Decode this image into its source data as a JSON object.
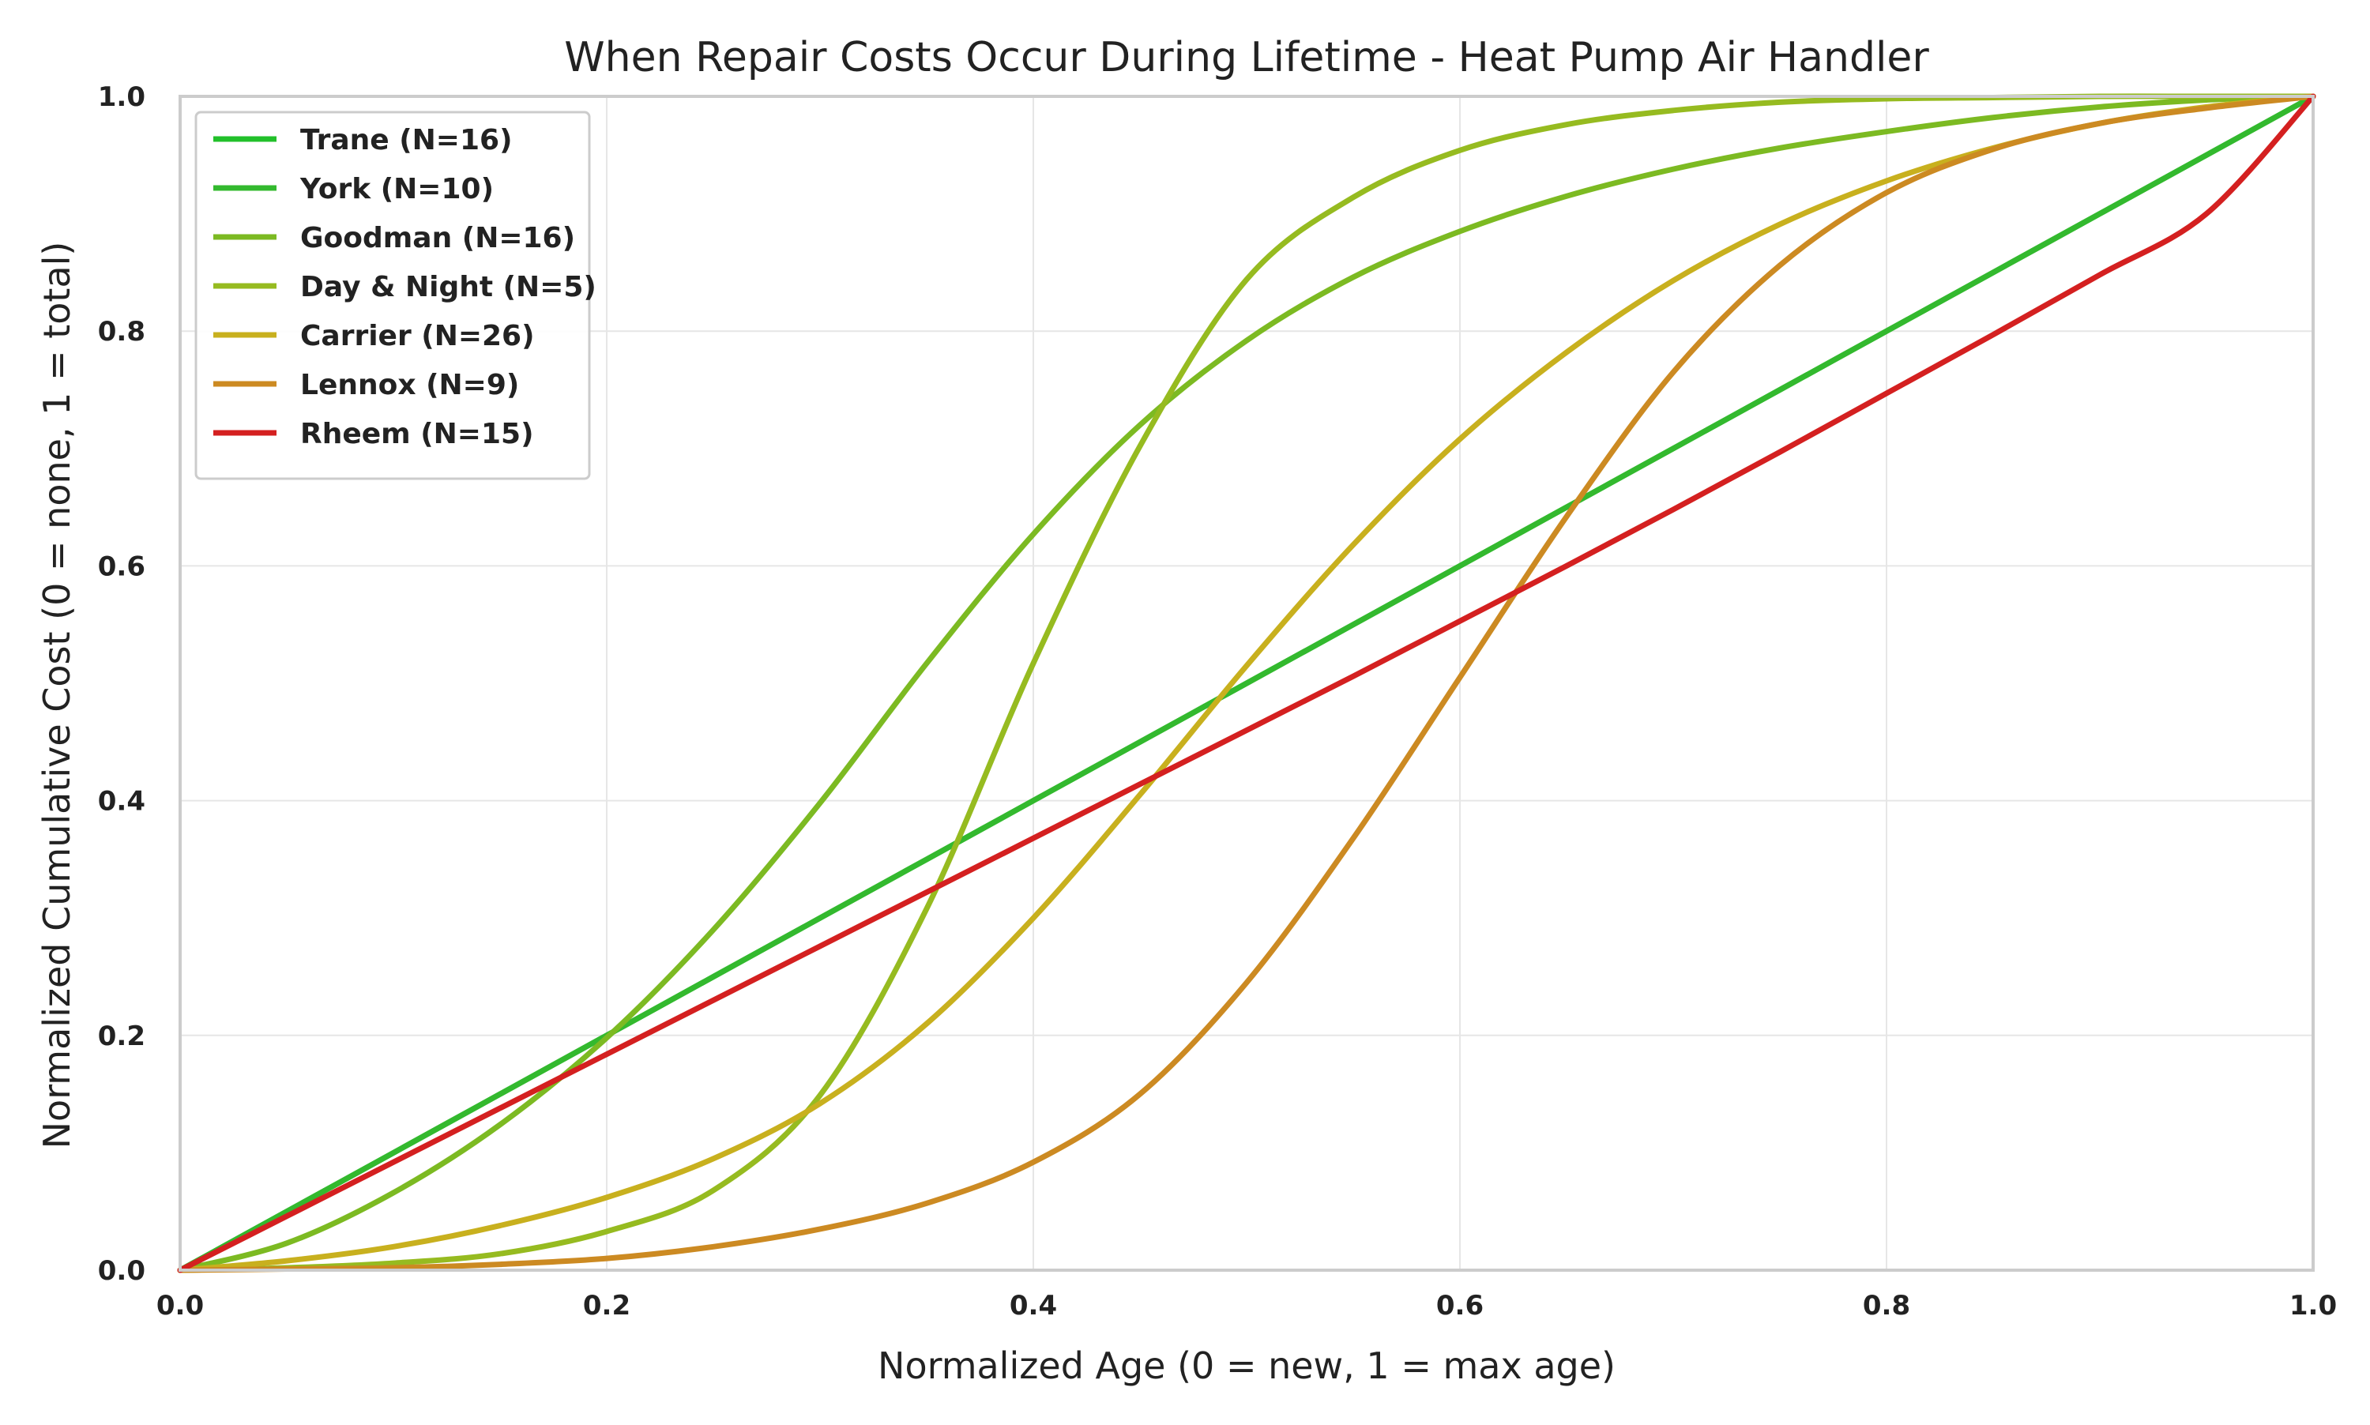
{
  "chart_data": {
    "type": "line",
    "title": "When Repair Costs Occur During Lifetime - Heat Pump Air Handler",
    "xlabel": "Normalized Age (0 = new, 1 = max age)",
    "ylabel": "Normalized Cumulative Cost (0 = none, 1 = total)",
    "xlim": [
      0.0,
      1.0
    ],
    "ylim": [
      0.0,
      1.0
    ],
    "xticks": [
      "0.0",
      "0.2",
      "0.4",
      "0.6",
      "0.8",
      "1.0"
    ],
    "yticks": [
      "0.0",
      "0.2",
      "0.4",
      "0.6",
      "0.8",
      "1.0"
    ],
    "grid": true,
    "legend_position": "top-left",
    "x": [
      0.0,
      0.05,
      0.1,
      0.15,
      0.2,
      0.25,
      0.3,
      0.35,
      0.4,
      0.45,
      0.5,
      0.55,
      0.6,
      0.65,
      0.7,
      0.75,
      0.8,
      0.85,
      0.9,
      0.95,
      1.0
    ],
    "series": [
      {
        "name": "Trane (N=16)",
        "color": "#22c02a",
        "values": [
          0.0,
          0.05,
          0.1,
          0.15,
          0.2,
          0.25,
          0.3,
          0.35,
          0.4,
          0.45,
          0.5,
          0.55,
          0.6,
          0.65,
          0.7,
          0.75,
          0.8,
          0.85,
          0.9,
          0.95,
          1.0
        ]
      },
      {
        "name": "York (N=10)",
        "color": "#33b92e",
        "values": [
          0.0,
          0.05,
          0.1,
          0.15,
          0.2,
          0.25,
          0.3,
          0.35,
          0.4,
          0.45,
          0.5,
          0.55,
          0.6,
          0.65,
          0.7,
          0.75,
          0.8,
          0.85,
          0.9,
          0.95,
          1.0
        ]
      },
      {
        "name": "Goodman (N=16)",
        "color": "#7cba22",
        "values": [
          0.0,
          0.023,
          0.066,
          0.124,
          0.198,
          0.29,
          0.398,
          0.517,
          0.627,
          0.72,
          0.792,
          0.846,
          0.885,
          0.915,
          0.938,
          0.956,
          0.97,
          0.982,
          0.991,
          0.997,
          1.0
        ]
      },
      {
        "name": "Day & Night (N=5)",
        "color": "#96bb20",
        "values": [
          0.0,
          0.002,
          0.006,
          0.014,
          0.033,
          0.068,
          0.149,
          0.308,
          0.517,
          0.702,
          0.844,
          0.914,
          0.954,
          0.976,
          0.988,
          0.995,
          0.998,
          0.999,
          1.0,
          1.0,
          1.0
        ]
      },
      {
        "name": "Carrier (N=26)",
        "color": "#c8b01e",
        "values": [
          0.0,
          0.008,
          0.02,
          0.038,
          0.062,
          0.095,
          0.142,
          0.21,
          0.3,
          0.405,
          0.515,
          0.618,
          0.708,
          0.782,
          0.843,
          0.891,
          0.928,
          0.956,
          0.977,
          0.991,
          1.0
        ]
      },
      {
        "name": "Lennox (N=9)",
        "color": "#cc8a22",
        "values": [
          0.0,
          0.001,
          0.002,
          0.005,
          0.01,
          0.02,
          0.035,
          0.057,
          0.092,
          0.15,
          0.245,
          0.368,
          0.505,
          0.642,
          0.765,
          0.856,
          0.918,
          0.955,
          0.977,
          0.99,
          1.0
        ]
      },
      {
        "name": "Rheem (N=15)",
        "color": "#d42020",
        "values": [
          0.0,
          0.046,
          0.092,
          0.138,
          0.184,
          0.23,
          0.276,
          0.322,
          0.368,
          0.414,
          0.46,
          0.506,
          0.553,
          0.6,
          0.648,
          0.697,
          0.747,
          0.797,
          0.848,
          0.9,
          1.0
        ]
      }
    ]
  }
}
